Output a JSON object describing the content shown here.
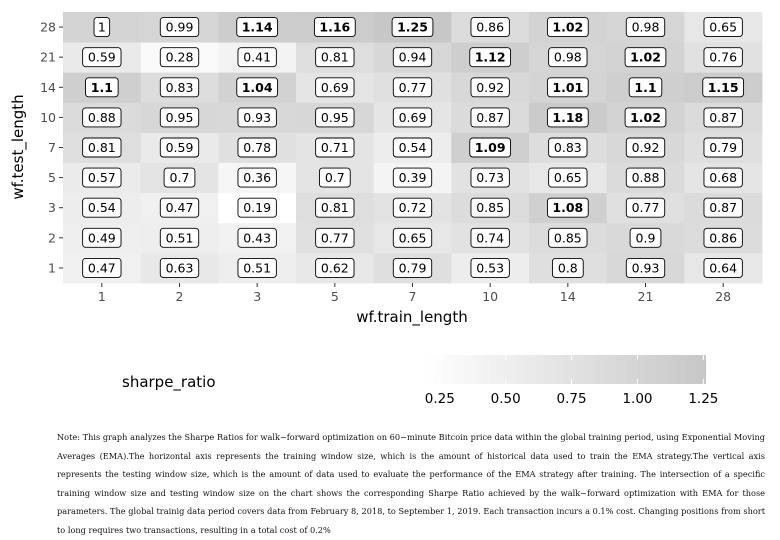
{
  "chart_data": {
    "type": "heatmap",
    "x_categories": [
      "1",
      "2",
      "3",
      "5",
      "7",
      "10",
      "14",
      "21",
      "28"
    ],
    "y_categories": [
      "1",
      "2",
      "3",
      "5",
      "7",
      "10",
      "14",
      "21",
      "28"
    ],
    "xlabel": "wf.train_length",
    "ylabel": "wf.test_length",
    "values": [
      [
        0.47,
        0.63,
        0.51,
        0.62,
        0.79,
        0.53,
        0.8,
        0.93,
        0.64
      ],
      [
        0.49,
        0.51,
        0.43,
        0.77,
        0.65,
        0.74,
        0.85,
        0.9,
        0.86
      ],
      [
        0.54,
        0.47,
        0.19,
        0.81,
        0.72,
        0.85,
        1.08,
        0.77,
        0.87
      ],
      [
        0.57,
        0.7,
        0.36,
        0.7,
        0.39,
        0.73,
        0.65,
        0.88,
        0.68
      ],
      [
        0.81,
        0.59,
        0.78,
        0.71,
        0.54,
        1.09,
        0.83,
        0.92,
        0.79
      ],
      [
        0.88,
        0.95,
        0.93,
        0.95,
        0.69,
        0.87,
        1.18,
        1.02,
        0.87
      ],
      [
        1.1,
        0.83,
        1.04,
        0.69,
        0.77,
        0.92,
        1.01,
        1.1,
        1.15
      ],
      [
        0.59,
        0.28,
        0.41,
        0.81,
        0.94,
        1.12,
        0.98,
        1.02,
        0.76
      ],
      [
        1,
        0.99,
        1.14,
        1.16,
        1.25,
        0.86,
        1.02,
        0.98,
        0.65
      ]
    ],
    "value_labels": [
      [
        "0.47",
        "0.63",
        "0.51",
        "0.62",
        "0.79",
        "0.53",
        "0.8",
        "0.93",
        "0.64"
      ],
      [
        "0.49",
        "0.51",
        "0.43",
        "0.77",
        "0.65",
        "0.74",
        "0.85",
        "0.9",
        "0.86"
      ],
      [
        "0.54",
        "0.47",
        "0.19",
        "0.81",
        "0.72",
        "0.85",
        "1.08",
        "0.77",
        "0.87"
      ],
      [
        "0.57",
        "0.7",
        "0.36",
        "0.7",
        "0.39",
        "0.73",
        "0.65",
        "0.88",
        "0.68"
      ],
      [
        "0.81",
        "0.59",
        "0.78",
        "0.71",
        "0.54",
        "1.09",
        "0.83",
        "0.92",
        "0.79"
      ],
      [
        "0.88",
        "0.95",
        "0.93",
        "0.95",
        "0.69",
        "0.87",
        "1.18",
        "1.02",
        "0.87"
      ],
      [
        "1.1",
        "0.83",
        "1.04",
        "0.69",
        "0.77",
        "0.92",
        "1.01",
        "1.1",
        "1.15"
      ],
      [
        "0.59",
        "0.28",
        "0.41",
        "0.81",
        "0.94",
        "1.12",
        "0.98",
        "1.02",
        "0.76"
      ],
      [
        "1",
        "0.99",
        "1.14",
        "1.16",
        "1.25",
        "0.86",
        "1.02",
        "0.98",
        "0.65"
      ]
    ],
    "bold_threshold": 1.0,
    "legend": {
      "title": "sharpe_ratio",
      "ticks": [
        0.25,
        0.5,
        0.75,
        1.0,
        1.25
      ],
      "tick_labels": [
        "0.25",
        "0.50",
        "0.75",
        "1.00",
        "1.25"
      ],
      "range": [
        0.19,
        1.25
      ],
      "placement": "bottom"
    },
    "color_low": "#ffffff",
    "color_high": "#c7c7c7",
    "panel_background": "#ebebeb",
    "grid": true
  },
  "note": "Note: This graph analyzes the Sharpe Ratios for walk−forward optimization on 60−minute Bitcoin price data within the global training period, using Exponential Moving Averages (EMA).The horizontal axis represents the training window size, which is the amount of historical data used to train the EMA strategy.The vertical axis represents the testing window size, which is the amount of data used to evaluate the performance of the EMA strategy after training. The intersection of a specific training window size and testing window size on the chart shows the corresponding Sharpe Ratio achieved by the walk−forward optimization with EMA for those parameters. The global trainig data period covers data from February 8, 2018, to September 1, 2019. Each transaction incurs a 0.1% cost. Changing positions from short to long requires two transactions, resulting in a total cost of 0.2%"
}
